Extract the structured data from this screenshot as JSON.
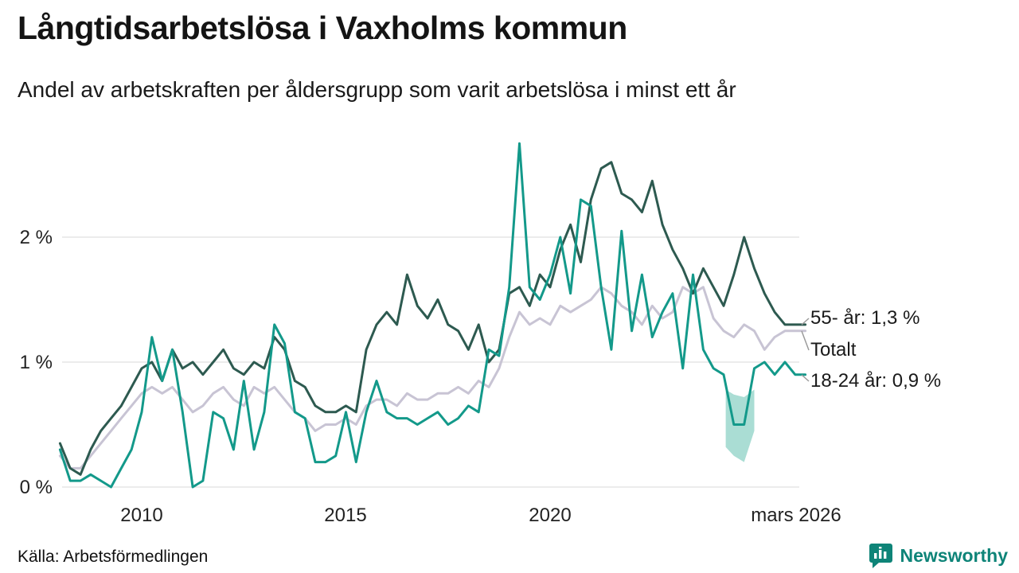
{
  "header": {
    "title": "Långtidsarbetslösa i Vaxholms kommun",
    "subtitle": "Andel av arbetskraften per åldersgrupp som varit arbetslösa i minst ett år"
  },
  "footer": {
    "source": "Källa: Arbetsförmedlingen",
    "brand": "Newsworthy",
    "brand_color": "#0e8478"
  },
  "chart_data": {
    "type": "line",
    "unit": "%",
    "grid": "horizontal",
    "legend_position": "right-end-labels",
    "x_start": 2008,
    "x_step": 0.25,
    "y_axis": {
      "range": [
        0,
        2.85
      ],
      "ticks": [
        {
          "value": 2,
          "label": "2 %"
        },
        {
          "value": 1,
          "label": "1 %"
        },
        {
          "value": 0,
          "label": "0 %"
        }
      ]
    },
    "x_axis": {
      "ticks": [
        {
          "value": 2010,
          "label": "2010"
        },
        {
          "value": 2015,
          "label": "2015"
        },
        {
          "value": 2020,
          "label": "2020"
        },
        {
          "value": 2026.17,
          "label": "mars 2026"
        }
      ]
    },
    "series": [
      {
        "id": "55plus",
        "name": "55- år",
        "end_label": "55- år: 1,3 %",
        "latest_value": 1.3,
        "color": "#2d5a50",
        "values": [
          0.35,
          0.15,
          0.1,
          0.3,
          0.45,
          0.55,
          0.65,
          0.8,
          0.95,
          1.0,
          0.85,
          1.1,
          0.95,
          1.0,
          0.9,
          1.0,
          1.1,
          0.95,
          0.9,
          1.0,
          0.95,
          1.2,
          1.1,
          0.85,
          0.8,
          0.65,
          0.6,
          0.6,
          0.65,
          0.6,
          1.1,
          1.3,
          1.4,
          1.3,
          1.7,
          1.45,
          1.35,
          1.5,
          1.3,
          1.25,
          1.1,
          1.3,
          1.0,
          1.1,
          1.55,
          1.6,
          1.45,
          1.7,
          1.6,
          1.9,
          2.1,
          1.8,
          2.3,
          2.55,
          2.6,
          2.35,
          2.3,
          2.2,
          2.45,
          2.1,
          1.9,
          1.75,
          1.55,
          1.75,
          1.6,
          1.45,
          1.7,
          2.0,
          1.75,
          1.55,
          1.4,
          1.3,
          1.3,
          1.3
        ]
      },
      {
        "id": "total",
        "name": "Totalt",
        "end_label": "Totalt",
        "latest_value": 1.25,
        "color": "#c8c4d4",
        "values": [
          0.25,
          0.15,
          0.15,
          0.25,
          0.35,
          0.45,
          0.55,
          0.65,
          0.75,
          0.8,
          0.75,
          0.8,
          0.7,
          0.6,
          0.65,
          0.75,
          0.8,
          0.7,
          0.65,
          0.8,
          0.75,
          0.8,
          0.7,
          0.6,
          0.55,
          0.45,
          0.5,
          0.5,
          0.55,
          0.5,
          0.65,
          0.7,
          0.7,
          0.65,
          0.75,
          0.7,
          0.7,
          0.75,
          0.75,
          0.8,
          0.75,
          0.85,
          0.8,
          0.95,
          1.2,
          1.4,
          1.3,
          1.35,
          1.3,
          1.45,
          1.4,
          1.45,
          1.5,
          1.6,
          1.55,
          1.45,
          1.4,
          1.3,
          1.45,
          1.35,
          1.4,
          1.6,
          1.55,
          1.6,
          1.35,
          1.25,
          1.2,
          1.3,
          1.25,
          1.1,
          1.2,
          1.25,
          1.25,
          1.25
        ]
      },
      {
        "id": "youth",
        "name": "18-24 år",
        "end_label": "18-24 år: 0,9 %",
        "latest_value": 0.9,
        "color": "#13998a",
        "values": [
          0.3,
          0.05,
          0.05,
          0.1,
          0.05,
          0.0,
          0.15,
          0.3,
          0.6,
          1.2,
          0.85,
          1.1,
          0.6,
          0.0,
          0.05,
          0.6,
          0.55,
          0.3,
          0.85,
          0.3,
          0.6,
          1.3,
          1.15,
          0.6,
          0.55,
          0.2,
          0.2,
          0.25,
          0.6,
          0.2,
          0.6,
          0.85,
          0.6,
          0.55,
          0.55,
          0.5,
          0.55,
          0.6,
          0.5,
          0.55,
          0.65,
          0.6,
          1.1,
          1.05,
          1.6,
          2.75,
          1.6,
          1.5,
          1.7,
          2.0,
          1.55,
          2.3,
          2.25,
          1.6,
          1.1,
          2.05,
          1.25,
          1.7,
          1.2,
          1.4,
          1.55,
          0.95,
          1.7,
          1.1,
          0.95,
          0.9,
          0.5,
          0.5,
          0.95,
          1.0,
          0.9,
          1.0,
          0.9,
          0.9
        ]
      }
    ],
    "band": {
      "series": "youth",
      "color": "#9bd7cd",
      "x": [
        2024.3,
        2024.5,
        2024.75,
        2025.0
      ],
      "upper": [
        0.78,
        0.74,
        0.72,
        0.78
      ],
      "lower": [
        0.32,
        0.25,
        0.2,
        0.45
      ]
    }
  }
}
